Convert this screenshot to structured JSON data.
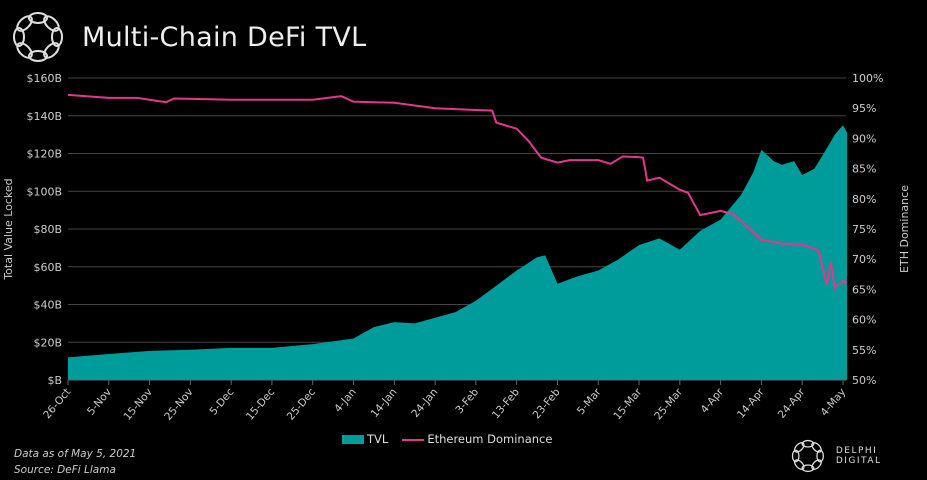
{
  "header": {
    "title": "Multi-Chain DeFi TVL",
    "logo_icon": "delphi-knot-logo"
  },
  "footer": {
    "data_note": "Data as of May 5, 2021",
    "source": "Source: DeFi Llama",
    "brand": "DELPHI DIGITAL"
  },
  "colors": {
    "tvl": "#009b9b",
    "dominance": "#e6358f",
    "background": "#000000",
    "grid": "#444444"
  },
  "chart_data": {
    "type": "area",
    "title": "Multi-Chain DeFi TVL",
    "xlabel": "",
    "ylabel": "Total Value Locked",
    "y2label": "ETH Dominance",
    "ylim": [
      0,
      160
    ],
    "y2lim": [
      50,
      100
    ],
    "yticks": [
      "$B",
      "$20B",
      "$40B",
      "$60B",
      "$80B",
      "$100B",
      "$120B",
      "$140B",
      "$160B"
    ],
    "y2ticks": [
      "50%",
      "55%",
      "60%",
      "65%",
      "70%",
      "75%",
      "80%",
      "85%",
      "90%",
      "95%",
      "100%"
    ],
    "xticks": [
      "26-Oct",
      "5-Nov",
      "15-Nov",
      "25-Nov",
      "5-Dec",
      "15-Dec",
      "25-Dec",
      "4-Jan",
      "14-Jan",
      "24-Jan",
      "3-Feb",
      "13-Feb",
      "23-Feb",
      "5-Mar",
      "15-Mar",
      "25-Mar",
      "4-Apr",
      "14-Apr",
      "24-Apr",
      "4-May"
    ],
    "grid": true,
    "legend_position": "bottom",
    "series": [
      {
        "name": "TVL",
        "type": "area",
        "axis": "left",
        "unit": "$B",
        "points": [
          [
            "2020-10-26",
            12
          ],
          [
            "2020-11-05",
            13.8
          ],
          [
            "2020-11-15",
            15.4
          ],
          [
            "2020-11-25",
            16
          ],
          [
            "2020-12-05",
            17
          ],
          [
            "2020-12-15",
            17
          ],
          [
            "2020-12-25",
            19
          ],
          [
            "2021-01-04",
            22
          ],
          [
            "2021-01-09",
            28
          ],
          [
            "2021-01-14",
            30.7
          ],
          [
            "2021-01-19",
            30
          ],
          [
            "2021-01-24",
            33
          ],
          [
            "2021-01-29",
            36
          ],
          [
            "2021-02-03",
            42
          ],
          [
            "2021-02-08",
            50
          ],
          [
            "2021-02-13",
            58
          ],
          [
            "2021-02-18",
            65
          ],
          [
            "2021-02-20",
            66
          ],
          [
            "2021-02-23",
            51
          ],
          [
            "2021-02-28",
            55
          ],
          [
            "2021-03-05",
            58
          ],
          [
            "2021-03-10",
            64
          ],
          [
            "2021-03-15",
            71.5
          ],
          [
            "2021-03-20",
            75
          ],
          [
            "2021-03-25",
            69
          ],
          [
            "2021-03-30",
            79
          ],
          [
            "2021-04-04",
            85
          ],
          [
            "2021-04-09",
            98
          ],
          [
            "2021-04-12",
            110
          ],
          [
            "2021-04-14",
            122
          ],
          [
            "2021-04-17",
            116
          ],
          [
            "2021-04-19",
            114
          ],
          [
            "2021-04-22",
            116
          ],
          [
            "2021-04-24",
            108.6
          ],
          [
            "2021-04-27",
            112
          ],
          [
            "2021-04-29",
            119
          ],
          [
            "2021-05-02",
            130
          ],
          [
            "2021-05-04",
            135
          ],
          [
            "2021-05-05",
            131
          ]
        ]
      },
      {
        "name": "Ethereum Dominance",
        "type": "line",
        "axis": "right",
        "unit": "%",
        "points": [
          [
            "2020-10-26",
            97.2
          ],
          [
            "2020-11-05",
            96.7
          ],
          [
            "2020-11-12",
            96.7
          ],
          [
            "2020-11-15",
            96.4
          ],
          [
            "2020-11-19",
            96.0
          ],
          [
            "2020-11-21",
            96.6
          ],
          [
            "2020-12-05",
            96.4
          ],
          [
            "2020-12-25",
            96.4
          ],
          [
            "2021-01-01",
            97.0
          ],
          [
            "2021-01-04",
            96.1
          ],
          [
            "2021-01-14",
            95.9
          ],
          [
            "2021-01-24",
            95.0
          ],
          [
            "2021-02-03",
            94.7
          ],
          [
            "2021-02-07",
            94.6
          ],
          [
            "2021-02-08",
            92.6
          ],
          [
            "2021-02-13",
            91.6
          ],
          [
            "2021-02-16",
            89.5
          ],
          [
            "2021-02-19",
            86.8
          ],
          [
            "2021-02-23",
            86.0
          ],
          [
            "2021-02-26",
            86.4
          ],
          [
            "2021-03-05",
            86.4
          ],
          [
            "2021-03-08",
            85.8
          ],
          [
            "2021-03-11",
            87.0
          ],
          [
            "2021-03-15",
            86.9
          ],
          [
            "2021-03-16",
            86.8
          ],
          [
            "2021-03-17",
            83.0
          ],
          [
            "2021-03-20",
            83.5
          ],
          [
            "2021-03-25",
            81.5
          ],
          [
            "2021-03-27",
            81.0
          ],
          [
            "2021-03-30",
            77.3
          ],
          [
            "2021-04-04",
            78.0
          ],
          [
            "2021-04-07",
            77.5
          ],
          [
            "2021-04-10",
            75.7
          ],
          [
            "2021-04-14",
            73.2
          ],
          [
            "2021-04-19",
            72.6
          ],
          [
            "2021-04-24",
            72.4
          ],
          [
            "2021-04-28",
            71.5
          ],
          [
            "2021-04-30",
            65.7
          ],
          [
            "2021-05-01",
            69.5
          ],
          [
            "2021-05-02",
            65.2
          ],
          [
            "2021-05-04",
            66.5
          ],
          [
            "2021-05-05",
            66.0
          ]
        ]
      }
    ]
  }
}
